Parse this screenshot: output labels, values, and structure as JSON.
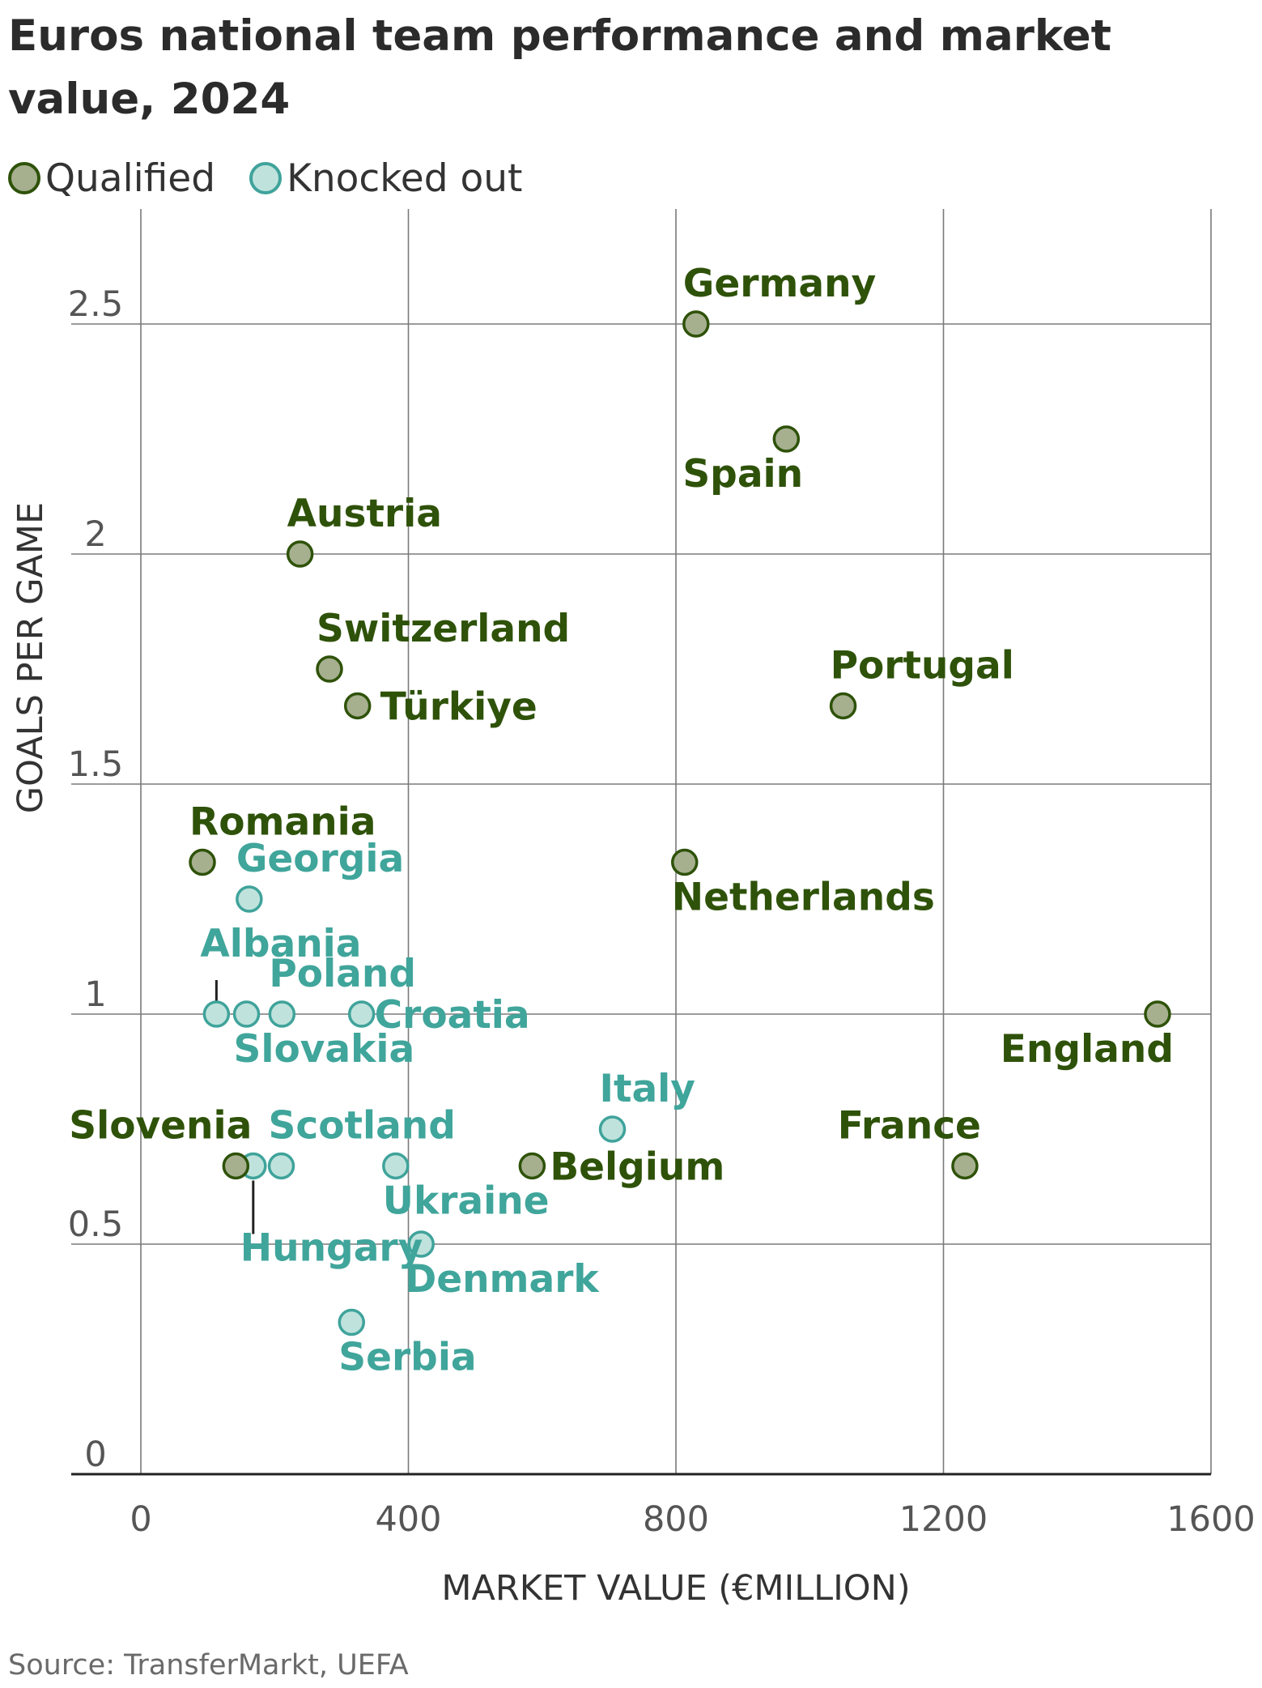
{
  "source": "Source: TransferMarkt, UEFA",
  "chart_data": {
    "type": "scatter",
    "title": "Euros national team performance and market value, 2024",
    "xlabel": "MARKET VALUE (€MILLION)",
    "ylabel": "GOALS PER GAME",
    "xlim": [
      -100,
      1600
    ],
    "ylim": [
      0,
      2.75
    ],
    "xticks": [
      0,
      400,
      800,
      1200,
      1600
    ],
    "yticks": [
      0,
      0.5,
      1,
      1.5,
      2,
      2.5
    ],
    "xtick_labels": [
      "0",
      "400",
      "800",
      "1200",
      "1600"
    ],
    "ytick_labels": [
      "0",
      "0.5",
      "1",
      "1.5",
      "2",
      "2.5"
    ],
    "grid": true,
    "legend_position": "top-left",
    "colors": {
      "qualified_fill": "#a6b08f",
      "qualified_stroke": "#2e5209",
      "qualified_text": "#2e5209",
      "knocked_fill": "#bfe3dc",
      "knocked_stroke": "#3fa39b",
      "knocked_text": "#40a59b"
    },
    "series": [
      {
        "name": "Qualified",
        "points": [
          {
            "label": "Germany",
            "x": 830,
            "y": 2.5
          },
          {
            "label": "Spain",
            "x": 965,
            "y": 2.25
          },
          {
            "label": "Austria",
            "x": 238,
            "y": 2.0
          },
          {
            "label": "Switzerland",
            "x": 282,
            "y": 1.75
          },
          {
            "label": "Türkiye",
            "x": 324,
            "y": 1.67
          },
          {
            "label": "Portugal",
            "x": 1050,
            "y": 1.67
          },
          {
            "label": "Romania",
            "x": 92,
            "y": 1.33
          },
          {
            "label": "Netherlands",
            "x": 813,
            "y": 1.33
          },
          {
            "label": "England",
            "x": 1520,
            "y": 1.0
          },
          {
            "label": "Slovenia",
            "x": 142,
            "y": 0.67
          },
          {
            "label": "Belgium",
            "x": 585,
            "y": 0.67
          },
          {
            "label": "France",
            "x": 1232,
            "y": 0.67
          }
        ]
      },
      {
        "name": "Knocked out",
        "points": [
          {
            "label": "Georgia",
            "x": 162,
            "y": 1.25
          },
          {
            "label": "Albania",
            "x": 113,
            "y": 1.0
          },
          {
            "label": "Slovakia",
            "x": 158,
            "y": 1.0
          },
          {
            "label": "Poland",
            "x": 211,
            "y": 1.0
          },
          {
            "label": "Croatia",
            "x": 330,
            "y": 1.0
          },
          {
            "label": "Italy",
            "x": 705,
            "y": 0.75
          },
          {
            "label": "Hungary",
            "x": 168,
            "y": 0.67
          },
          {
            "label": "Scotland",
            "x": 210,
            "y": 0.67
          },
          {
            "label": "Ukraine",
            "x": 381,
            "y": 0.67
          },
          {
            "label": "Denmark",
            "x": 419,
            "y": 0.5
          },
          {
            "label": "Serbia",
            "x": 315,
            "y": 0.33
          }
        ]
      }
    ]
  }
}
